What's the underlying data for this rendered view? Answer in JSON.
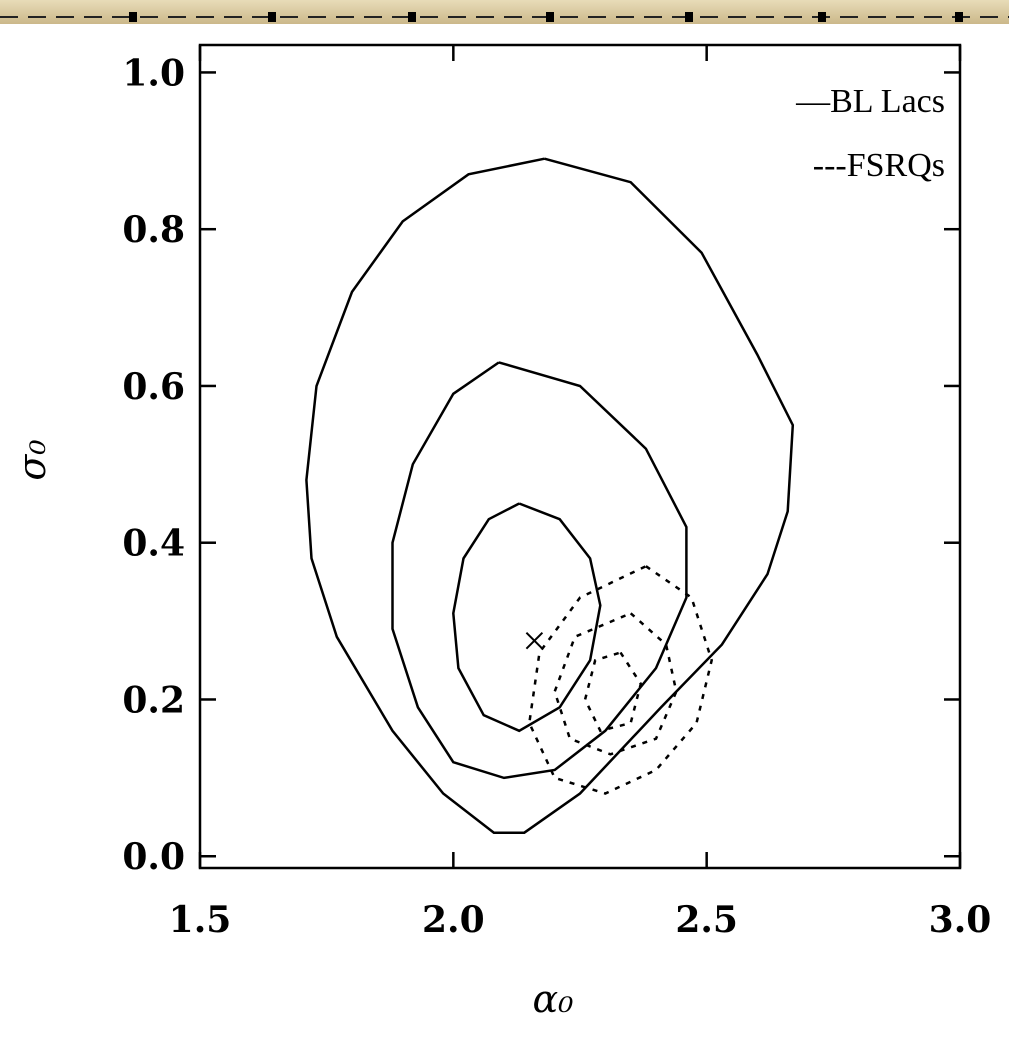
{
  "chart_data": {
    "type": "contour",
    "xlabel": "α₀",
    "ylabel": "σ₀",
    "xlim": [
      1.5,
      3.0
    ],
    "ylim": [
      -0.015,
      1.035
    ],
    "xticks": [
      {
        "value": 1.5,
        "label": "1.5"
      },
      {
        "value": 2.0,
        "label": "2.0"
      },
      {
        "value": 2.5,
        "label": "2.5"
      },
      {
        "value": 3.0,
        "label": "3.0"
      }
    ],
    "yticks": [
      {
        "value": 0.0,
        "label": "0.0"
      },
      {
        "value": 0.2,
        "label": "0.2"
      },
      {
        "value": 0.4,
        "label": "0.4"
      },
      {
        "value": 0.6,
        "label": "0.6"
      },
      {
        "value": 0.8,
        "label": "0.8"
      },
      {
        "value": 1.0,
        "label": "1.0"
      }
    ],
    "legend": "upper right",
    "series": [
      {
        "name": "—BL Lacs",
        "color": "#000000",
        "dashed": false,
        "contours": [
          {
            "x": [
              2.18,
              2.35,
              2.49,
              2.6,
              2.67,
              2.66,
              2.62,
              2.53,
              2.41,
              2.25,
              2.14,
              2.08,
              1.98,
              1.88,
              1.77,
              1.72,
              1.71,
              1.73,
              1.8,
              1.9,
              2.03,
              2.18
            ],
            "y": [
              0.89,
              0.86,
              0.77,
              0.64,
              0.55,
              0.44,
              0.36,
              0.27,
              0.19,
              0.08,
              0.03,
              0.03,
              0.08,
              0.16,
              0.28,
              0.38,
              0.48,
              0.6,
              0.72,
              0.81,
              0.87,
              0.89
            ]
          },
          {
            "x": [
              2.09,
              2.25,
              2.38,
              2.46,
              2.46,
              2.4,
              2.3,
              2.2,
              2.1,
              2.0,
              1.93,
              1.88,
              1.88,
              1.92,
              2.0,
              2.09
            ],
            "y": [
              0.63,
              0.6,
              0.52,
              0.42,
              0.33,
              0.24,
              0.16,
              0.11,
              0.1,
              0.12,
              0.19,
              0.29,
              0.4,
              0.5,
              0.59,
              0.63
            ]
          },
          {
            "x": [
              2.13,
              2.21,
              2.27,
              2.29,
              2.27,
              2.21,
              2.13,
              2.06,
              2.01,
              2.0,
              2.02,
              2.07,
              2.13
            ],
            "y": [
              0.45,
              0.43,
              0.38,
              0.32,
              0.25,
              0.19,
              0.16,
              0.18,
              0.24,
              0.31,
              0.38,
              0.43,
              0.45
            ]
          }
        ]
      },
      {
        "name": "---FSRQs",
        "color": "#000000",
        "dashed": true,
        "contours": [
          {
            "x": [
              2.38,
              2.47,
              2.51,
              2.48,
              2.4,
              2.3,
              2.2,
              2.15,
              2.17,
              2.25,
              2.38
            ],
            "y": [
              0.37,
              0.33,
              0.25,
              0.17,
              0.11,
              0.08,
              0.1,
              0.17,
              0.26,
              0.33,
              0.37
            ]
          },
          {
            "x": [
              2.35,
              2.42,
              2.44,
              2.4,
              2.31,
              2.23,
              2.2,
              2.24,
              2.35
            ],
            "y": [
              0.31,
              0.27,
              0.21,
              0.15,
              0.13,
              0.15,
              0.21,
              0.28,
              0.31
            ]
          },
          {
            "x": [
              2.33,
              2.37,
              2.35,
              2.29,
              2.26,
              2.28,
              2.33
            ],
            "y": [
              0.26,
              0.22,
              0.17,
              0.16,
              0.2,
              0.25,
              0.26
            ]
          }
        ]
      }
    ],
    "markers": [
      {
        "x": 2.16,
        "y": 0.275
      }
    ]
  }
}
